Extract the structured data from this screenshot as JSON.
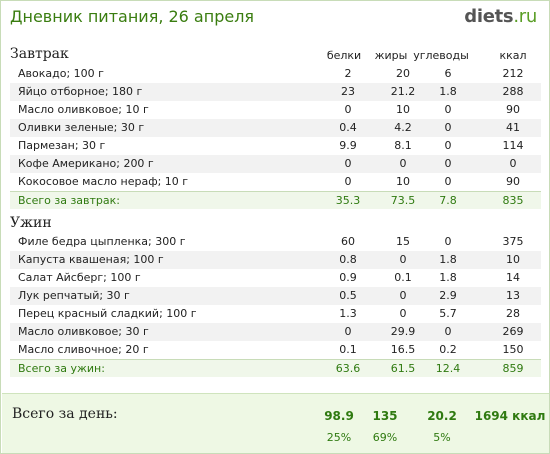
{
  "header": {
    "title": "Дневник питания, 26 апреля",
    "logo_main": "diets",
    "logo_suffix": ".ru"
  },
  "columns": {
    "protein": "белки",
    "fat": "жиры",
    "carbs": "углеводы",
    "kcal": "ккал"
  },
  "meals": [
    {
      "title": "Завтрак",
      "items": [
        {
          "name": "Авокадо; 100 г",
          "protein": "2",
          "fat": "20",
          "carbs": "6",
          "kcal": "212"
        },
        {
          "name": "Яйцо отборное; 180 г",
          "protein": "23",
          "fat": "21.2",
          "carbs": "1.8",
          "kcal": "288"
        },
        {
          "name": "Масло оливковое; 10 г",
          "protein": "0",
          "fat": "10",
          "carbs": "0",
          "kcal": "90"
        },
        {
          "name": "Оливки зеленые; 30 г",
          "protein": "0.4",
          "fat": "4.2",
          "carbs": "0",
          "kcal": "41"
        },
        {
          "name": "Пармезан; 30 г",
          "protein": "9.9",
          "fat": "8.1",
          "carbs": "0",
          "kcal": "114"
        },
        {
          "name": "Кофе Американо; 200 г",
          "protein": "0",
          "fat": "0",
          "carbs": "0",
          "kcal": "0"
        },
        {
          "name": "Кокосовое масло нераф; 10 г",
          "protein": "0",
          "fat": "10",
          "carbs": "0",
          "kcal": "90"
        }
      ],
      "total": {
        "name": "Всего за завтрак:",
        "protein": "35.3",
        "fat": "73.5",
        "carbs": "7.8",
        "kcal": "835"
      }
    },
    {
      "title": "Ужин",
      "items": [
        {
          "name": "Филе бедра цыпленка; 300 г",
          "protein": "60",
          "fat": "15",
          "carbs": "0",
          "kcal": "375"
        },
        {
          "name": "Капуста квашеная; 100 г",
          "protein": "0.8",
          "fat": "0",
          "carbs": "1.8",
          "kcal": "10"
        },
        {
          "name": "Салат Айсберг; 100 г",
          "protein": "0.9",
          "fat": "0.1",
          "carbs": "1.8",
          "kcal": "14"
        },
        {
          "name": "Лук репчатый; 30 г",
          "protein": "0.5",
          "fat": "0",
          "carbs": "2.9",
          "kcal": "13"
        },
        {
          "name": "Перец красный сладкий; 100 г",
          "protein": "1.3",
          "fat": "0",
          "carbs": "5.7",
          "kcal": "28"
        },
        {
          "name": "Масло оливковое; 30 г",
          "protein": "0",
          "fat": "29.9",
          "carbs": "0",
          "kcal": "269"
        },
        {
          "name": "Масло сливочное; 20 г",
          "protein": "0.1",
          "fat": "16.5",
          "carbs": "0.2",
          "kcal": "150"
        }
      ],
      "total": {
        "name": "Всего за ужин:",
        "protein": "63.6",
        "fat": "61.5",
        "carbs": "12.4",
        "kcal": "859"
      }
    }
  ],
  "day_total": {
    "label": "Всего за день:",
    "protein": "98.9",
    "fat": "135",
    "carbs": "20.2",
    "kcal": "1694 ккал",
    "protein_pct": "25%",
    "fat_pct": "69%",
    "carbs_pct": "5%"
  }
}
